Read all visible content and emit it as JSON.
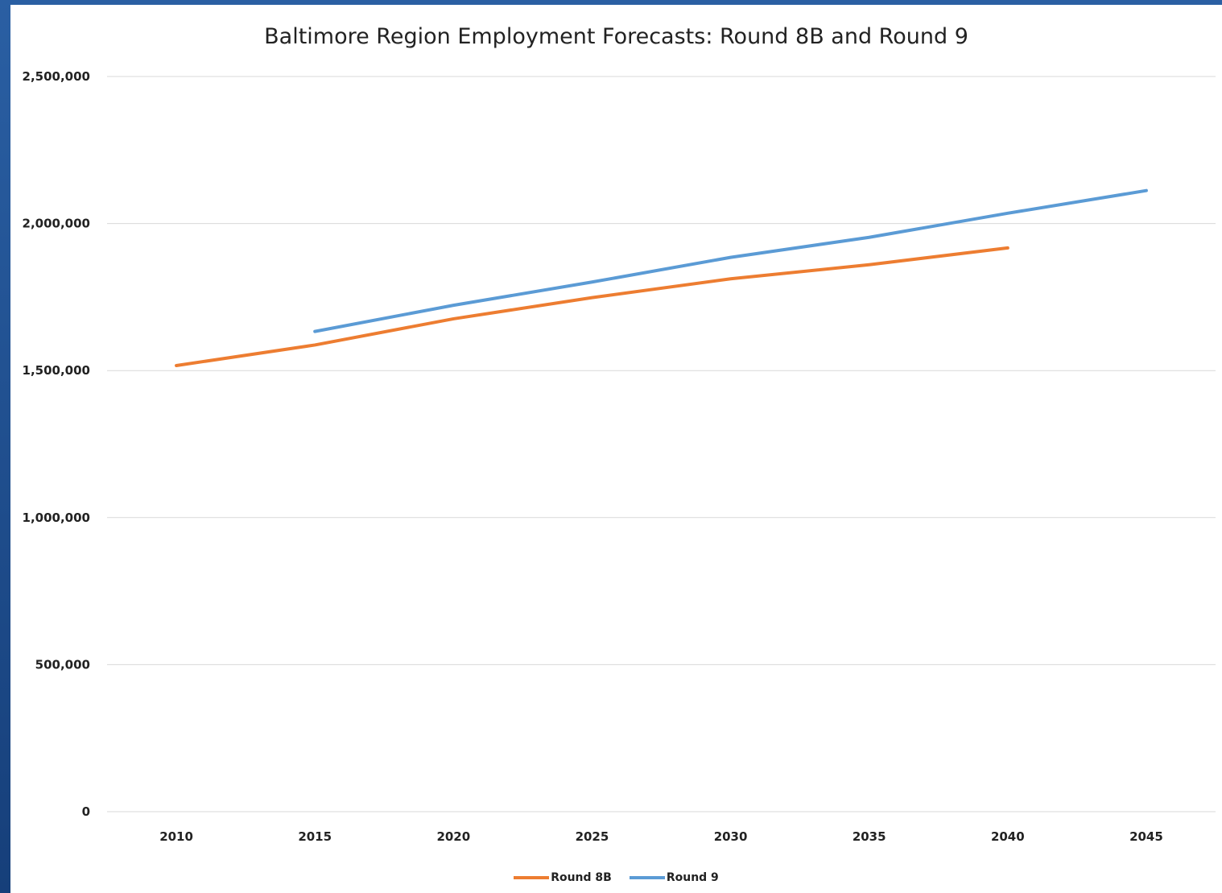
{
  "chart_data": {
    "type": "line",
    "title": "Baltimore Region Employment Forecasts: Round 8B and Round 9",
    "xlabel": "",
    "ylabel": "",
    "categories": [
      "2010",
      "2015",
      "2020",
      "2025",
      "2030",
      "2035",
      "2040",
      "2045"
    ],
    "ylim": [
      0,
      2500000
    ],
    "yticks": [
      "0",
      "500,000",
      "1,000,000",
      "1,500,000",
      "2,000,000",
      "2,500,000"
    ],
    "ytick_values": [
      0,
      500000,
      1000000,
      1500000,
      2000000,
      2500000
    ],
    "grid": true,
    "legend_position": "bottom",
    "series": [
      {
        "name": "Round 8B",
        "color": "#ed7d31",
        "values": [
          1517000,
          1587000,
          1676000,
          1748000,
          1812000,
          1860000,
          1917000,
          null
        ]
      },
      {
        "name": "Round 9",
        "color": "#5b9bd5",
        "values": [
          null,
          1633000,
          1722000,
          1801000,
          1885000,
          1953000,
          2035000,
          2112000
        ]
      }
    ]
  }
}
